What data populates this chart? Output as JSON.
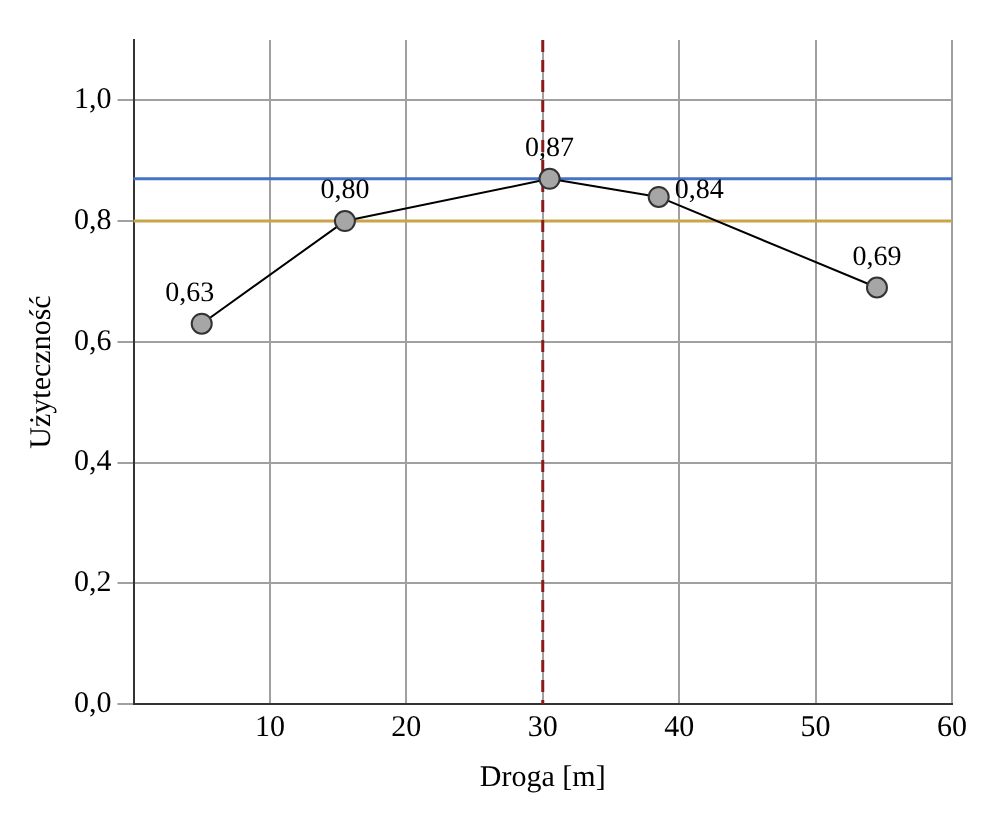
{
  "chart_data": {
    "type": "line",
    "xlabel": "Droga [m]",
    "ylabel": "Użyteczność",
    "series": [
      {
        "color": "#000000",
        "x": [
          5,
          15.5,
          30.5,
          38.5,
          54.5
        ],
        "values": [
          0.63,
          0.8,
          0.87,
          0.84,
          0.69
        ],
        "value_labels": [
          "0,63",
          "0,80",
          "0,87",
          "0,84",
          "0,69"
        ]
      }
    ],
    "xlim": [
      0,
      60
    ],
    "xticks": [
      10,
      20,
      30,
      40,
      50,
      60
    ],
    "ylim": [
      0,
      1.1
    ],
    "yticks": [
      {
        "value": 0,
        "label": "0,0"
      },
      {
        "value": 0.2,
        "label": "0,2"
      },
      {
        "value": 0.4,
        "label": "0,4"
      },
      {
        "value": 0.6,
        "label": "0,6"
      },
      {
        "value": 0.8,
        "label": "0,8"
      },
      {
        "value": 1,
        "label": "1,0"
      }
    ],
    "ref_lines": [
      {
        "axis": "y",
        "value": 0.87,
        "color": "#4472c4"
      },
      {
        "axis": "y",
        "value": 0.8,
        "color": "#c9a44a"
      },
      {
        "axis": "x",
        "value": 30,
        "color": "#8b1a1a",
        "line_style": "dashed"
      }
    ],
    "grid": true,
    "legend": false,
    "marker": "circle",
    "line_style": "solid"
  }
}
